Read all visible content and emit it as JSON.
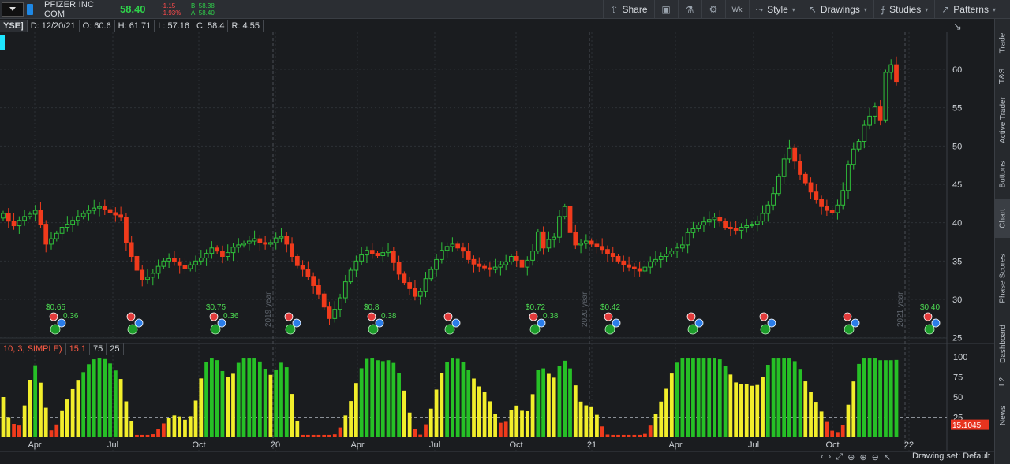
{
  "toolbar": {
    "company": "PFIZER INC COM",
    "price": "58.40",
    "change": "-1.15",
    "change_pct": "-1.93%",
    "bid": "B: 58.38",
    "ask": "A: 58.40",
    "share_label": "Share",
    "period_label": "Wk",
    "style_label": "Style",
    "drawings_label": "Drawings",
    "studies_label": "Studies",
    "patterns_label": "Patterns"
  },
  "infobar": {
    "exchange": "YSE]",
    "date": "D: 12/20/21",
    "open": "O: 60.6",
    "high": "H: 61.71",
    "low": "L: 57.16",
    "close": "C: 58.4",
    "range": "R: 4.55"
  },
  "oscillator": {
    "label": "10, 3, SIMPLE)",
    "value": "15.1",
    "upper": "75",
    "lower": "25",
    "current_tag": "15.1045",
    "axis": [
      "100",
      "75",
      "50",
      "25"
    ]
  },
  "colors": {
    "up": "#2fc03a",
    "down": "#f03b1c",
    "osc_yellow": "#f2ee2b",
    "osc_green": "#26c026",
    "osc_red": "#f03b1c",
    "background": "#1a1c1f"
  },
  "chart_data": {
    "type": "candlestick",
    "price_ticks": [
      "60",
      "55",
      "50",
      "45",
      "40",
      "35",
      "30",
      "25"
    ],
    "x_ticks": [
      "Apr",
      "Jul",
      "Oct",
      "20",
      "Apr",
      "Jul",
      "Oct",
      "21",
      "Apr",
      "Jul",
      "Oct",
      "22"
    ],
    "year_markers": [
      "2019 year",
      "2020 year",
      "2021 year"
    ],
    "dividends": [
      "$0.65",
      "0.36",
      "$0.75",
      "0.36",
      "$0.8",
      "0.38",
      "$0.72",
      "0.38",
      "$0.42",
      "$0.40"
    ],
    "closes": [
      41.2,
      40.2,
      39.6,
      40.3,
      40.8,
      41.1,
      41.6,
      39.8,
      37.2,
      37.9,
      38.6,
      39.4,
      39.8,
      40.3,
      40.8,
      41.2,
      41.6,
      41.9,
      42.1,
      41.7,
      41.3,
      41.0,
      40.7,
      37.4,
      35.6,
      33.8,
      32.6,
      32.9,
      33.4,
      34.3,
      35.0,
      35.3,
      34.9,
      34.4,
      34.0,
      34.5,
      35.0,
      35.4,
      36.0,
      36.7,
      36.3,
      35.6,
      36.1,
      36.8,
      37.1,
      37.3,
      37.6,
      37.9,
      37.4,
      37.2,
      37.4,
      38.0,
      38.2,
      37.2,
      35.6,
      34.4,
      33.9,
      33.0,
      31.8,
      30.7,
      29.0,
      27.5,
      28.7,
      30.2,
      32.3,
      33.8,
      35.0,
      35.8,
      36.4,
      36.0,
      35.7,
      36.1,
      36.3,
      34.8,
      33.3,
      32.2,
      31.4,
      30.4,
      31.0,
      32.7,
      33.9,
      35.2,
      36.4,
      36.9,
      37.2,
      36.7,
      36.3,
      35.2,
      34.6,
      34.3,
      34.1,
      33.9,
      34.2,
      34.5,
      34.9,
      35.6,
      35.1,
      34.2,
      35.1,
      36.3,
      38.8,
      36.7,
      37.8,
      38.1,
      40.8,
      42.1,
      38.7,
      37.1,
      37.3,
      37.6,
      37.2,
      36.9,
      36.5,
      36.0,
      35.6,
      35.0,
      34.5,
      34.2,
      34.0,
      33.7,
      34.2,
      34.9,
      35.2,
      35.6,
      35.9,
      36.3,
      36.7,
      37.1,
      38.7,
      39.2,
      39.7,
      40.1,
      40.4,
      40.7,
      40.2,
      39.4,
      39.2,
      39.0,
      39.4,
      39.6,
      39.8,
      40.2,
      41.2,
      42.3,
      43.8,
      46.0,
      48.3,
      49.7,
      48.0,
      46.3,
      45.2,
      44.0,
      43.0,
      42.1,
      41.6,
      41.3,
      42.3,
      44.2,
      47.6,
      49.6,
      50.6,
      52.7,
      53.9,
      55.1,
      53.4,
      59.6,
      60.6,
      58.4
    ]
  }
}
